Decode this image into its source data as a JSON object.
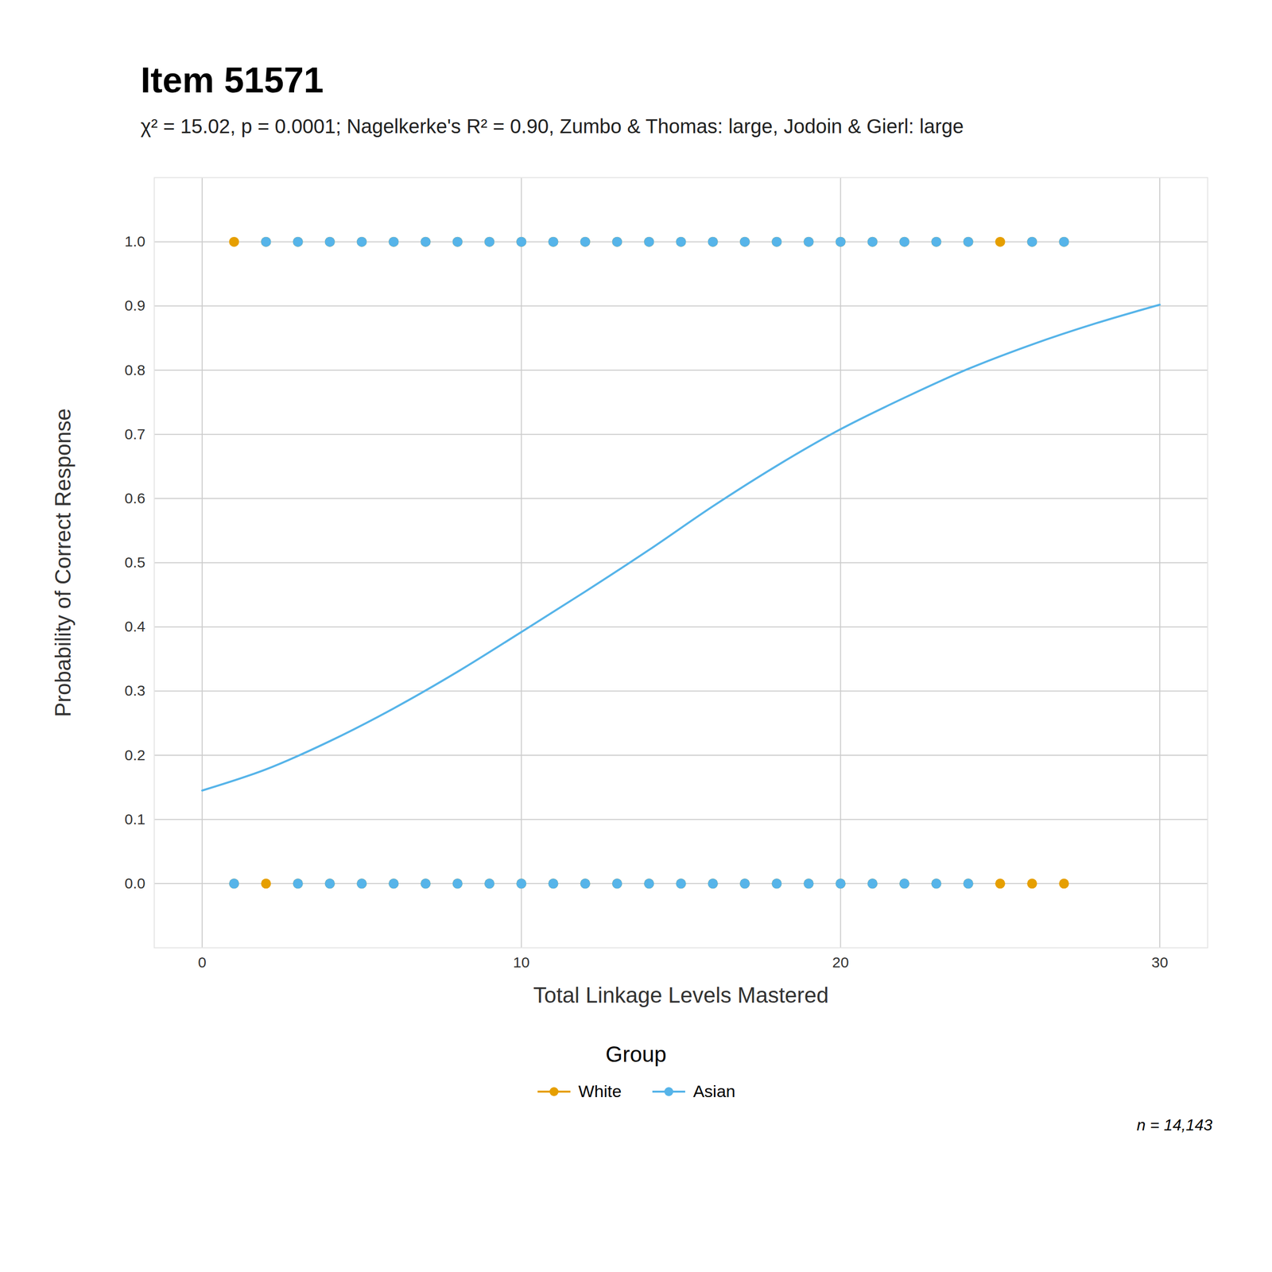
{
  "chart_data": {
    "type": "scatter",
    "title": "Item 51571",
    "subtitle": "χ² = 15.02, p = 0.0001; Nagelkerke's R² = 0.90, Zumbo & Thomas: large, Jodoin & Gierl: large",
    "x_label": "Total Linkage Levels Mastered",
    "y_label": "Probability of Correct Response",
    "legend_title": "Group",
    "caption": "n = 14,143",
    "legend": "bottom",
    "grid": true,
    "xlim": [
      -1.5,
      31.5
    ],
    "xticks": [
      0,
      10,
      20,
      30
    ],
    "ylim": [
      -0.1,
      1.1
    ],
    "yticks": [
      {
        "value": 0,
        "label": "0.0"
      },
      0.1,
      0.2,
      0.3,
      0.4,
      0.5,
      0.6,
      0.7,
      0.8,
      0.9,
      {
        "value": 1,
        "label": "1.0"
      }
    ],
    "series": [
      {
        "name": "White",
        "color": "#E69F00",
        "type": "scatter",
        "marker": "circle",
        "x": [
          1,
          2,
          3,
          4,
          5,
          6,
          7,
          8,
          9,
          10,
          11,
          12,
          13,
          14,
          15,
          16,
          17,
          18,
          19,
          20,
          21,
          22,
          23,
          24,
          25,
          26,
          27,
          1,
          2,
          3,
          4,
          5,
          6,
          7,
          8,
          9,
          10,
          11,
          12,
          13,
          14,
          15,
          16,
          17,
          18,
          19,
          20,
          21,
          22,
          23,
          24,
          25,
          26,
          27
        ],
        "y": [
          1,
          1,
          1,
          1,
          1,
          1,
          1,
          1,
          1,
          1,
          1,
          1,
          1,
          1,
          1,
          1,
          1,
          1,
          1,
          1,
          1,
          1,
          1,
          1,
          1,
          1,
          1,
          0,
          0,
          0,
          0,
          0,
          0,
          0,
          0,
          0,
          0,
          0,
          0,
          0,
          0,
          0,
          0,
          0,
          0,
          0,
          0,
          0,
          0,
          0,
          0,
          0,
          0,
          0
        ]
      },
      {
        "name": "Asian",
        "color": "#56B4E9",
        "type": "scatter",
        "marker": "circle",
        "x": [
          2,
          3,
          4,
          5,
          6,
          7,
          8,
          9,
          10,
          11,
          12,
          13,
          14,
          15,
          16,
          17,
          18,
          19,
          20,
          21,
          22,
          23,
          24,
          26,
          27,
          1,
          3,
          4,
          5,
          6,
          7,
          8,
          9,
          10,
          11,
          12,
          13,
          14,
          15,
          16,
          17,
          18,
          19,
          20,
          21,
          22,
          23,
          24
        ],
        "y": [
          1,
          1,
          1,
          1,
          1,
          1,
          1,
          1,
          1,
          1,
          1,
          1,
          1,
          1,
          1,
          1,
          1,
          1,
          1,
          1,
          1,
          1,
          1,
          1,
          1,
          0,
          0,
          0,
          0,
          0,
          0,
          0,
          0,
          0,
          0,
          0,
          0,
          0,
          0,
          0,
          0,
          0,
          0,
          0,
          0,
          0,
          0,
          0
        ]
      },
      {
        "name": "Asian",
        "color": "#56B4E9",
        "type": "line",
        "line_style": "solid",
        "x": [
          0,
          2,
          4,
          6,
          8,
          10,
          12,
          14,
          16,
          18,
          20,
          22,
          24,
          26,
          28,
          30
        ],
        "y": [
          0.145,
          0.178,
          0.222,
          0.273,
          0.33,
          0.392,
          0.455,
          0.52,
          0.588,
          0.651,
          0.708,
          0.757,
          0.802,
          0.84,
          0.873,
          0.902
        ]
      }
    ]
  }
}
